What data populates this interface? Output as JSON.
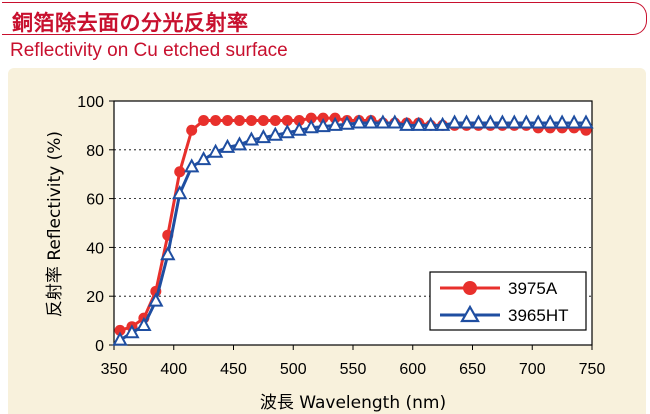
{
  "header": {
    "title": "銅箔除去面の分光反射率",
    "subtitle": "Reflectivity on Cu etched surface"
  },
  "chart_data": {
    "type": "line",
    "xlabel": "波長 Wavelength (nm)",
    "ylabel": "反射率 Reflectivity (%)",
    "xlim": [
      350,
      750
    ],
    "ylim": [
      0,
      100
    ],
    "xticks": [
      350,
      400,
      450,
      500,
      550,
      600,
      650,
      700,
      750
    ],
    "yticks": [
      0,
      20,
      40,
      60,
      80,
      100
    ],
    "grid": "horizontal",
    "legend_position": "bottom-right",
    "series": [
      {
        "name": "3975A",
        "color": "#e8302c",
        "marker": "circle",
        "x": [
          355,
          365,
          375,
          385,
          395,
          405,
          415,
          425,
          435,
          445,
          455,
          465,
          475,
          485,
          495,
          505,
          515,
          525,
          535,
          545,
          555,
          565,
          575,
          585,
          595,
          605,
          615,
          625,
          635,
          645,
          655,
          665,
          675,
          685,
          695,
          705,
          715,
          725,
          735,
          745
        ],
        "values": [
          6,
          7.5,
          11,
          22,
          45,
          71,
          88,
          92,
          92,
          92,
          92,
          92,
          92,
          92,
          92,
          92,
          93,
          93,
          93,
          92,
          92,
          92,
          91,
          91,
          91,
          91,
          90,
          90,
          90,
          90,
          90,
          90,
          90,
          90,
          90,
          89,
          89,
          89,
          89,
          88
        ]
      },
      {
        "name": "3965HT",
        "color": "#1f4ea1",
        "marker": "triangle",
        "x": [
          355,
          365,
          375,
          385,
          395,
          405,
          415,
          425,
          435,
          445,
          455,
          465,
          475,
          485,
          495,
          505,
          515,
          525,
          535,
          545,
          555,
          565,
          575,
          585,
          595,
          605,
          615,
          625,
          635,
          645,
          655,
          665,
          675,
          685,
          695,
          705,
          715,
          725,
          735,
          745
        ],
        "values": [
          2,
          5,
          8,
          18,
          37,
          62,
          73,
          76,
          79,
          81,
          82,
          84,
          85,
          86,
          87,
          88,
          89,
          89.5,
          90,
          90.5,
          91,
          91,
          91,
          91,
          90,
          90,
          90,
          90,
          91,
          91,
          91,
          91,
          91,
          91,
          91,
          91,
          91,
          91,
          91,
          91
        ]
      }
    ]
  }
}
